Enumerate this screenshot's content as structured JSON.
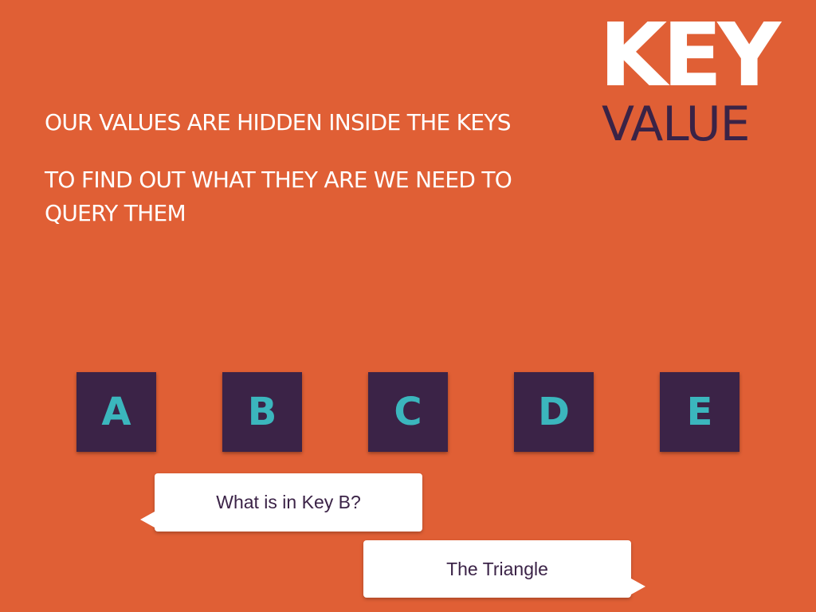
{
  "title": {
    "key": "KEY",
    "value": "VALUE"
  },
  "intro": {
    "line1": "OUR VALUES ARE HIDDEN INSIDE THE KEYS",
    "line2": "TO FIND OUT WHAT THEY ARE WE NEED TO",
    "line3": "QUERY THEM"
  },
  "keys": [
    {
      "label": "A"
    },
    {
      "label": "B"
    },
    {
      "label": "C"
    },
    {
      "label": "D"
    },
    {
      "label": "E"
    }
  ],
  "dialog": {
    "question": "What is in Key B?",
    "answer": "The Triangle"
  },
  "colors": {
    "background": "#e05f35",
    "key_box": "#3b2347",
    "key_letter": "#3bb6bd",
    "value_text": "#3a2346",
    "bubble": "#ffffff"
  }
}
